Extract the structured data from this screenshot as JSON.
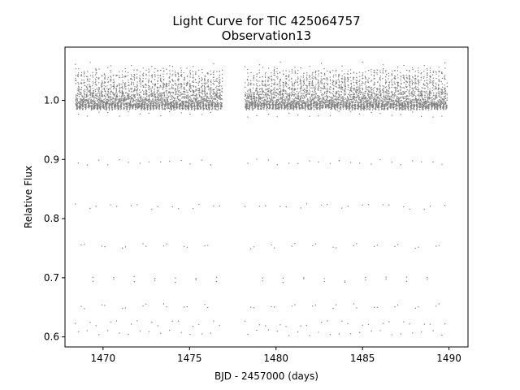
{
  "chart_data": {
    "type": "scatter",
    "title": "Light Curve for TIC 425064757",
    "subtitle": "Observation13",
    "xlabel": "BJD - 2457000 (days)",
    "ylabel": "Relative Flux",
    "xlim": [
      1467.8,
      1491.1
    ],
    "ylim": [
      0.583,
      1.09
    ],
    "xticks": [
      1470,
      1475,
      1480,
      1485,
      1490
    ],
    "yticks": [
      0.6,
      0.7,
      0.8,
      0.9,
      1.0
    ],
    "xtick_labels": [
      "1470",
      "1475",
      "1480",
      "1485",
      "1490"
    ],
    "ytick_labels": [
      "0.6",
      "0.7",
      "0.8",
      "0.9",
      "1.0"
    ],
    "grid": false,
    "series": [
      {
        "marker_color": "#808080",
        "segments": [
          {
            "x_start": 1468.4,
            "x_end": 1476.9
          },
          {
            "x_start": 1478.2,
            "x_end": 1489.9
          }
        ],
        "flux_baseline_min": 0.97,
        "flux_baseline_max": 1.06,
        "flux_min": 0.605,
        "oscillation_period_days": 0.17
      }
    ]
  }
}
